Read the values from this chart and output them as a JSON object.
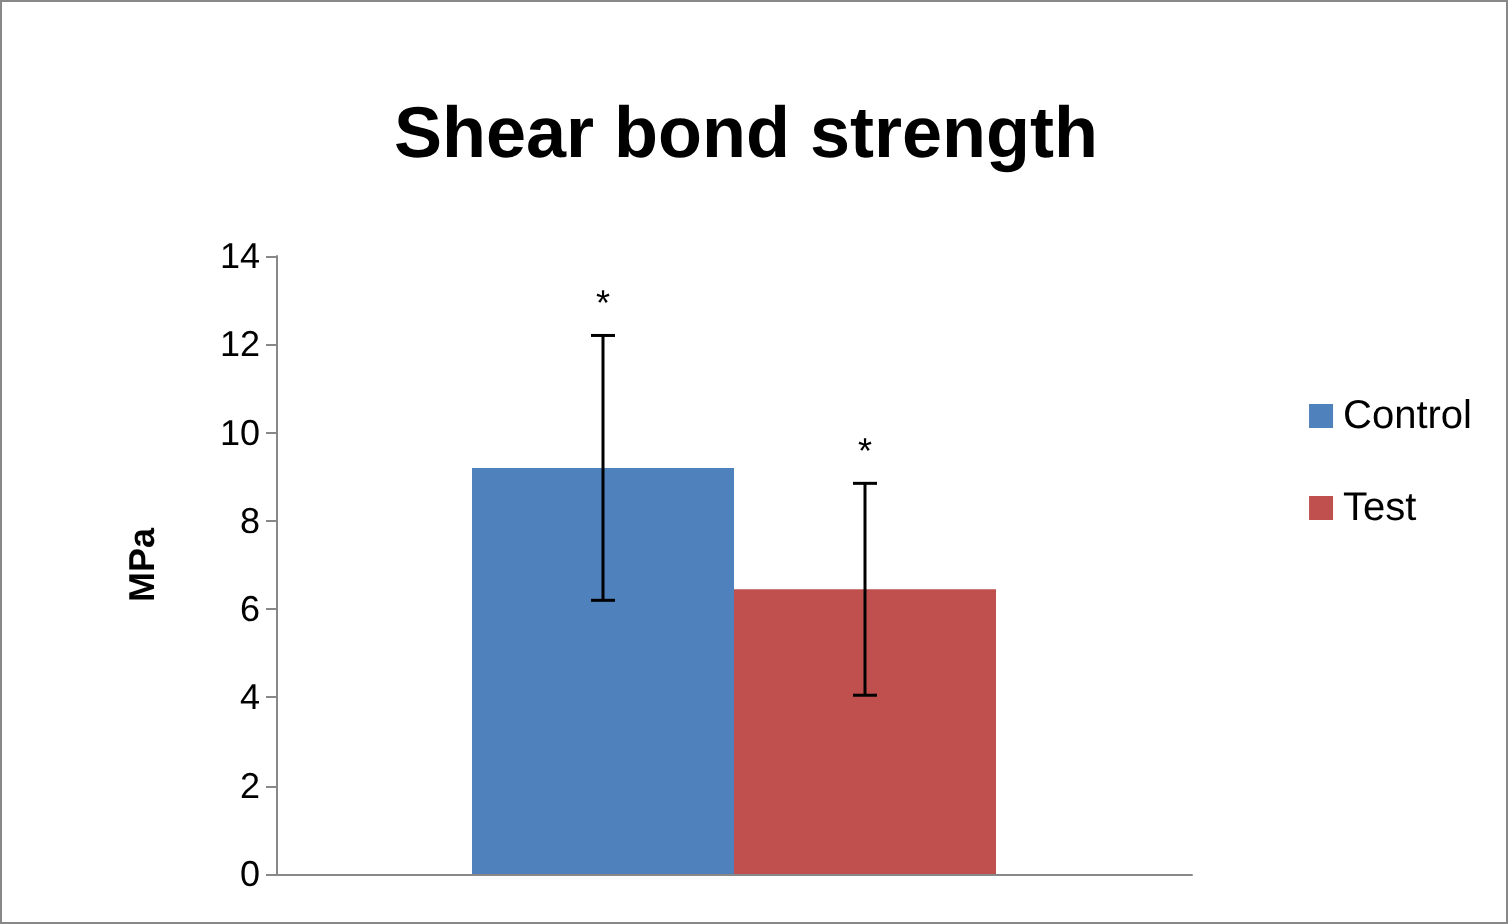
{
  "chart_data": {
    "type": "bar",
    "title": "Shear bond strength",
    "ylabel": "MPa",
    "categories": [
      null
    ],
    "series": [
      {
        "name": "Control",
        "color": "#4f81bd",
        "values": [
          9.2
        ],
        "errors": [
          3.0
        ]
      },
      {
        "name": "Test",
        "color": "#c0504d",
        "values": [
          6.45
        ],
        "errors": [
          2.4
        ]
      }
    ],
    "annotations": [
      "*",
      "*"
    ],
    "ylim": [
      0,
      14
    ],
    "yticks": [
      0,
      2,
      4,
      6,
      8,
      10,
      12,
      14
    ],
    "grid": false,
    "legend": "right"
  }
}
